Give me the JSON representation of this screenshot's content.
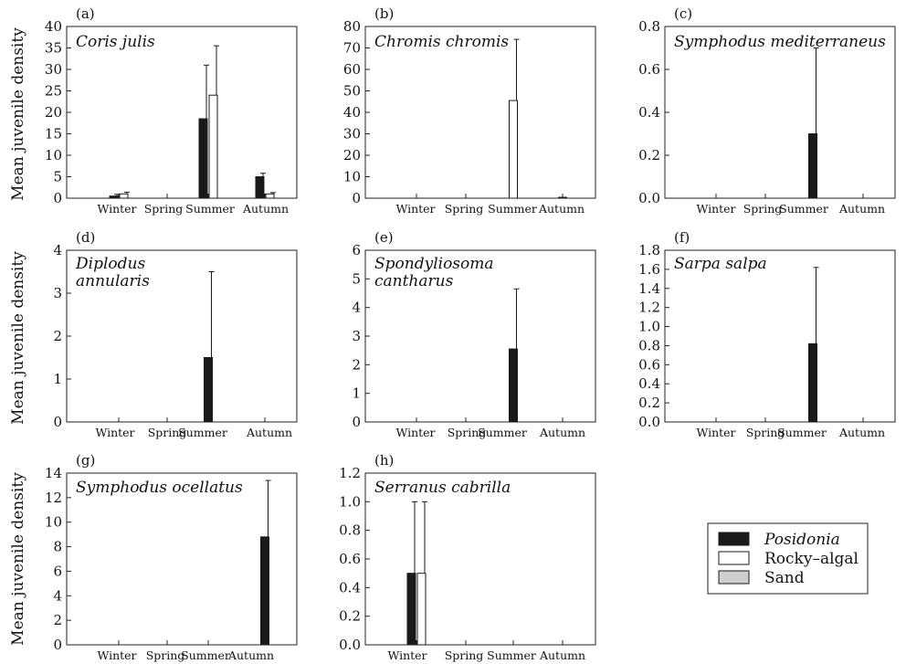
{
  "figure": {
    "ylabel": "Mean juvenile density",
    "legend": {
      "placement": "bottom-right",
      "items": [
        {
          "label": "Posidonia",
          "color": "#1a1a1a",
          "italic": true
        },
        {
          "label": "Rocky–algal",
          "color": "#ffffff",
          "italic": false
        },
        {
          "label": "Sand",
          "color": "#cfcfcf",
          "italic": false
        }
      ]
    }
  },
  "chart_data": [
    {
      "panel": "(a)",
      "title": "Coris julis",
      "type": "bar",
      "categories": [
        "Winter",
        "Spring",
        "Summer",
        "Autumn"
      ],
      "ylim": [
        0,
        40
      ],
      "yticks": [
        "0",
        "5",
        "10",
        "15",
        "20",
        "25",
        "30",
        "35",
        "40"
      ],
      "series": [
        {
          "name": "Posidonia",
          "values": [
            0.5,
            0,
            18.5,
            5.0
          ],
          "errors": [
            0.4,
            0,
            12.5,
            0.8
          ]
        },
        {
          "name": "Rocky–algal",
          "values": [
            1.0,
            0,
            24.0,
            1.0
          ],
          "errors": [
            0.4,
            0,
            11.5,
            0.3
          ]
        },
        {
          "name": "Sand",
          "values": [
            0,
            0,
            0,
            0
          ],
          "errors": [
            0,
            0,
            0,
            0
          ]
        }
      ]
    },
    {
      "panel": "(b)",
      "title": "Chromis chromis",
      "type": "bar",
      "categories": [
        "Winter",
        "Spring",
        "Summer",
        "Autumn"
      ],
      "ylim": [
        0,
        80
      ],
      "yticks": [
        "0",
        "10",
        "20",
        "30",
        "40",
        "50",
        "60",
        "70",
        "80"
      ],
      "series": [
        {
          "name": "Posidonia",
          "values": [
            0,
            0,
            0,
            0.3
          ],
          "errors": [
            0,
            0,
            0,
            0
          ]
        },
        {
          "name": "Rocky–algal",
          "values": [
            0,
            0,
            45.5,
            0
          ],
          "errors": [
            0,
            0,
            28.5,
            0
          ]
        },
        {
          "name": "Sand",
          "values": [
            0,
            0,
            0,
            0
          ],
          "errors": [
            0,
            0,
            0,
            0
          ]
        }
      ]
    },
    {
      "panel": "(c)",
      "title": "Symphodus mediterraneus",
      "type": "bar",
      "categories": [
        "Winter",
        "Spring",
        "Summer",
        "Autumn"
      ],
      "ylim": [
        0,
        0.8
      ],
      "yticks": [
        "0.0",
        "0.2",
        "0.4",
        "0.6",
        "0.8"
      ],
      "series": [
        {
          "name": "Posidonia",
          "values": [
            0,
            0,
            0.3,
            0
          ],
          "errors": [
            0,
            0,
            0.4,
            0
          ]
        },
        {
          "name": "Rocky–algal",
          "values": [
            0,
            0,
            0,
            0
          ],
          "errors": [
            0,
            0,
            0,
            0
          ]
        },
        {
          "name": "Sand",
          "values": [
            0,
            0,
            0,
            0
          ],
          "errors": [
            0,
            0,
            0,
            0
          ]
        }
      ]
    },
    {
      "panel": "(d)",
      "title": "Diplodus annularis",
      "type": "bar",
      "categories": [
        "Winter",
        "Spring",
        "Summer",
        "Autumn"
      ],
      "ylim": [
        0,
        4
      ],
      "yticks": [
        "0",
        "1",
        "2",
        "3",
        "4"
      ],
      "series": [
        {
          "name": "Posidonia",
          "values": [
            0,
            0,
            1.5,
            0
          ],
          "errors": [
            0,
            0,
            2.0,
            0
          ]
        },
        {
          "name": "Rocky–algal",
          "values": [
            0,
            0,
            0,
            0
          ],
          "errors": [
            0,
            0,
            0,
            0
          ]
        },
        {
          "name": "Sand",
          "values": [
            0,
            0,
            0,
            0
          ],
          "errors": [
            0,
            0,
            0,
            0
          ]
        }
      ]
    },
    {
      "panel": "(e)",
      "title": "Spondyliosoma cantharus",
      "type": "bar",
      "categories": [
        "Winter",
        "Spring",
        "Summer",
        "Autumn"
      ],
      "ylim": [
        0,
        6
      ],
      "yticks": [
        "0",
        "1",
        "2",
        "3",
        "4",
        "5",
        "6"
      ],
      "series": [
        {
          "name": "Posidonia",
          "values": [
            0,
            0,
            2.55,
            0
          ],
          "errors": [
            0,
            0,
            2.1,
            0
          ]
        },
        {
          "name": "Rocky–algal",
          "values": [
            0,
            0,
            0,
            0
          ],
          "errors": [
            0,
            0,
            0,
            0
          ]
        },
        {
          "name": "Sand",
          "values": [
            0,
            0,
            0,
            0
          ],
          "errors": [
            0,
            0,
            0,
            0
          ]
        }
      ]
    },
    {
      "panel": "(f)",
      "title": "Sarpa salpa",
      "type": "bar",
      "categories": [
        "Winter",
        "Spring",
        "Summer",
        "Autumn"
      ],
      "ylim": [
        0,
        1.8
      ],
      "yticks": [
        "0.0",
        "0.2",
        "0.4",
        "0.6",
        "0.8",
        "1.0",
        "1.2",
        "1.4",
        "1.6",
        "1.8"
      ],
      "series": [
        {
          "name": "Posidonia",
          "values": [
            0,
            0,
            0.82,
            0
          ],
          "errors": [
            0,
            0,
            0.8,
            0
          ]
        },
        {
          "name": "Rocky–algal",
          "values": [
            0,
            0,
            0,
            0
          ],
          "errors": [
            0,
            0,
            0,
            0
          ]
        },
        {
          "name": "Sand",
          "values": [
            0,
            0,
            0,
            0
          ],
          "errors": [
            0,
            0,
            0,
            0
          ]
        }
      ]
    },
    {
      "panel": "(g)",
      "title": "Symphodus ocellatus",
      "type": "bar",
      "categories": [
        "Winter",
        "Spring",
        "Summer",
        "Autumn"
      ],
      "ylim": [
        0,
        14
      ],
      "yticks": [
        "0",
        "2",
        "4",
        "6",
        "8",
        "10",
        "12",
        "14"
      ],
      "series": [
        {
          "name": "Posidonia",
          "values": [
            0,
            0,
            0,
            8.8
          ],
          "errors": [
            0,
            0,
            0,
            4.6
          ]
        },
        {
          "name": "Rocky–algal",
          "values": [
            0,
            0,
            0,
            0
          ],
          "errors": [
            0,
            0,
            0,
            0
          ]
        },
        {
          "name": "Sand",
          "values": [
            0,
            0,
            0,
            0
          ],
          "errors": [
            0,
            0,
            0,
            0
          ]
        }
      ]
    },
    {
      "panel": "(h)",
      "title": "Serranus cabrilla",
      "type": "bar",
      "categories": [
        "Winter",
        "Spring",
        "Summer",
        "Autumn"
      ],
      "ylim": [
        0,
        1.2
      ],
      "yticks": [
        "0.0",
        "0.2",
        "0.4",
        "0.6",
        "0.8",
        "1.0",
        "1.2"
      ],
      "series": [
        {
          "name": "Posidonia",
          "values": [
            0.5,
            0,
            0,
            0
          ],
          "errors": [
            0.5,
            0,
            0,
            0
          ]
        },
        {
          "name": "Rocky–algal",
          "values": [
            0.5,
            0,
            0,
            0
          ],
          "errors": [
            0.5,
            0,
            0,
            0
          ]
        },
        {
          "name": "Sand",
          "values": [
            0,
            0,
            0,
            0
          ],
          "errors": [
            0,
            0,
            0,
            0
          ]
        }
      ]
    }
  ]
}
